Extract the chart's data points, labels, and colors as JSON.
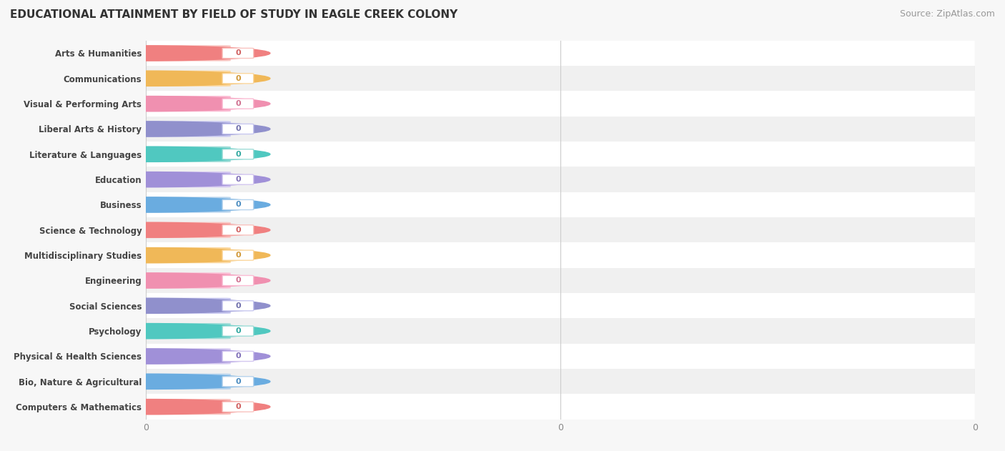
{
  "title": "EDUCATIONAL ATTAINMENT BY FIELD OF STUDY IN EAGLE CREEK COLONY",
  "source": "Source: ZipAtlas.com",
  "categories": [
    "Computers & Mathematics",
    "Bio, Nature & Agricultural",
    "Physical & Health Sciences",
    "Psychology",
    "Social Sciences",
    "Engineering",
    "Multidisciplinary Studies",
    "Science & Technology",
    "Business",
    "Education",
    "Literature & Languages",
    "Liberal Arts & History",
    "Visual & Performing Arts",
    "Communications",
    "Arts & Humanities"
  ],
  "values": [
    0,
    0,
    0,
    0,
    0,
    0,
    0,
    0,
    0,
    0,
    0,
    0,
    0,
    0,
    0
  ],
  "bar_colors": [
    "#f9c4c0",
    "#b8d4ed",
    "#d4c8f0",
    "#a0ddd8",
    "#c8c8f0",
    "#fbbdd4",
    "#fbd8a0",
    "#f9c4c0",
    "#b8d4ed",
    "#d4c8f0",
    "#a0ddd8",
    "#c8c8f0",
    "#fbbdd4",
    "#fbd8a0",
    "#f9c4c0"
  ],
  "circle_colors": [
    "#f08080",
    "#6aace0",
    "#a090d8",
    "#50c8c0",
    "#9090cc",
    "#f090b0",
    "#f0b858",
    "#f08080",
    "#6aace0",
    "#a090d8",
    "#50c8c0",
    "#9090cc",
    "#f090b0",
    "#f0b858",
    "#f08080"
  ],
  "pill_text_colors": [
    "#d06060",
    "#4a8cc0",
    "#8070b8",
    "#30a8a0",
    "#7070ac",
    "#d07090",
    "#d09838",
    "#d06060",
    "#4a8cc0",
    "#8070b8",
    "#30a8a0",
    "#7070ac",
    "#d07090",
    "#d09838",
    "#d06060"
  ],
  "background_color": "#f7f7f7",
  "row_colors": [
    "#ffffff",
    "#f0f0f0"
  ],
  "title_fontsize": 11,
  "source_fontsize": 9,
  "bar_label_fontsize": 8,
  "category_fontsize": 8.5
}
